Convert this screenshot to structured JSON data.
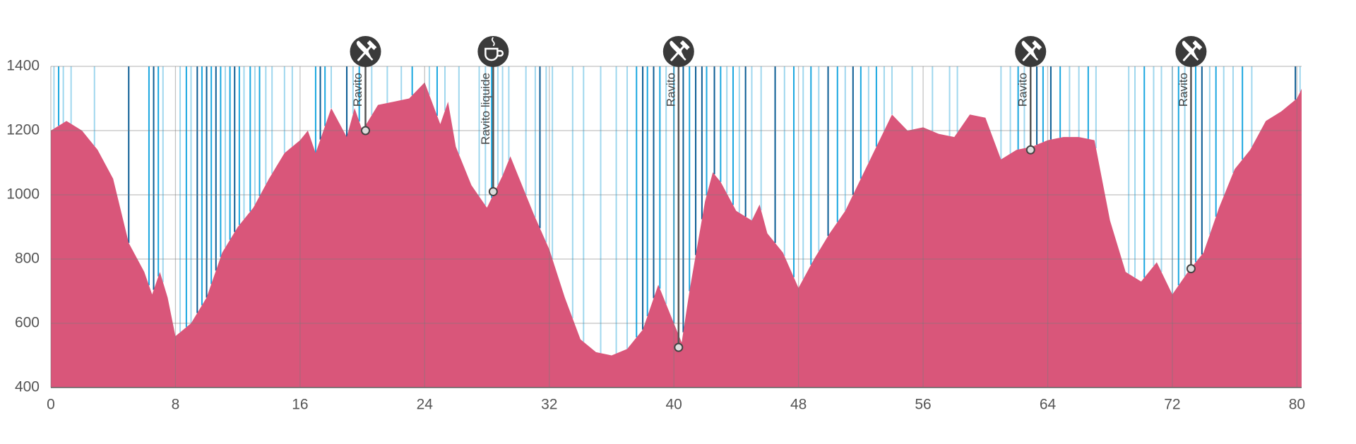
{
  "chart_data": {
    "type": "area",
    "color": "#d9567a",
    "xlim": [
      0,
      80.3
    ],
    "ylim": [
      400,
      1400
    ],
    "xticks": [
      0,
      8,
      16,
      24,
      32,
      40,
      48,
      56,
      64,
      72,
      80
    ],
    "yticks": [
      400,
      600,
      800,
      1000,
      1200,
      1400
    ],
    "grid": true,
    "x": [
      0,
      1,
      2,
      3,
      4,
      5,
      6,
      6.5,
      7,
      7.5,
      8,
      9,
      10,
      11,
      12,
      13,
      14,
      15,
      16,
      16.5,
      17,
      18,
      19,
      19.5,
      20,
      21,
      22,
      23,
      24,
      25,
      25.5,
      26,
      27,
      28,
      29,
      29.5,
      30,
      31,
      32,
      33,
      34,
      35,
      36,
      37,
      38,
      39,
      40,
      40.5,
      41,
      42,
      42.5,
      43,
      44,
      45,
      45.5,
      46,
      47,
      48,
      49,
      50,
      51,
      52,
      53,
      54,
      55,
      56,
      57,
      58,
      59,
      60,
      61,
      62,
      63,
      64,
      65,
      66,
      67,
      68,
      69,
      70,
      71,
      72,
      73,
      74,
      75,
      76,
      77,
      78,
      79,
      80,
      80.3
    ],
    "values": [
      1200,
      1230,
      1200,
      1140,
      1050,
      850,
      760,
      690,
      760,
      680,
      560,
      600,
      680,
      820,
      900,
      960,
      1050,
      1130,
      1170,
      1200,
      1130,
      1270,
      1180,
      1270,
      1200,
      1280,
      1290,
      1300,
      1350,
      1220,
      1290,
      1150,
      1030,
      960,
      1060,
      1120,
      1060,
      940,
      830,
      680,
      550,
      510,
      500,
      520,
      580,
      720,
      600,
      540,
      700,
      980,
      1070,
      1040,
      950,
      920,
      970,
      880,
      820,
      710,
      800,
      880,
      950,
      1050,
      1150,
      1250,
      1200,
      1210,
      1190,
      1180,
      1250,
      1240,
      1110,
      1140,
      1150,
      1170,
      1180,
      1180,
      1170,
      920,
      760,
      730,
      790,
      690,
      760,
      820,
      960,
      1080,
      1140,
      1230,
      1260,
      1300,
      1330
    ],
    "stripe_colors": [
      "#9fd7ee",
      "#1aa7e0",
      "#0a5c94"
    ],
    "stripes": {
      "x": [
        0.2,
        0.5,
        0.8,
        1.3,
        2.8,
        5.0,
        6.3,
        6.6,
        6.9,
        7.2,
        8.3,
        8.7,
        9.0,
        9.4,
        9.7,
        10.0,
        10.3,
        10.6,
        10.9,
        11.2,
        11.5,
        11.8,
        12.1,
        12.4,
        12.8,
        13.1,
        13.4,
        13.8,
        14.2,
        15.0,
        15.5,
        17.0,
        17.3,
        17.6,
        18.0,
        19.0,
        19.4,
        19.8,
        20.6,
        21.6,
        22.5,
        23.2,
        24.3,
        24.8,
        25.3,
        26.2,
        27.5,
        27.9,
        28.3,
        28.7,
        29.0,
        29.4,
        30.5,
        31.1,
        31.4,
        31.8,
        32.2,
        33.5,
        34.2,
        35.3,
        36.3,
        37.0,
        37.6,
        38.0,
        38.3,
        38.7,
        39.1,
        39.5,
        40.0,
        40.6,
        41.0,
        41.4,
        41.8,
        42.1,
        42.6,
        43.0,
        43.4,
        43.8,
        44.2,
        44.6,
        45.0,
        45.6,
        46.5,
        47.1,
        47.7,
        48.3,
        48.8,
        49.3,
        49.9,
        50.5,
        51.0,
        51.5,
        52.0,
        52.5,
        53.0,
        53.5,
        54.0,
        55.3,
        56.6,
        57.7,
        58.2,
        61.0,
        61.6,
        62.1,
        62.5,
        63.3,
        63.7,
        64.2,
        64.8,
        65.4,
        66.0,
        66.6,
        67.1,
        69.2,
        69.6,
        70.2,
        70.8,
        71.3,
        72.0,
        72.4,
        72.8,
        73.5,
        73.9,
        74.4,
        74.8,
        75.3,
        75.9,
        76.5,
        77.1,
        79.9,
        80.2
      ],
      "shade": [
        0,
        1,
        0,
        0,
        0,
        2,
        1,
        2,
        1,
        0,
        0,
        1,
        0,
        2,
        1,
        2,
        1,
        2,
        1,
        0,
        1,
        2,
        1,
        0,
        1,
        0,
        1,
        0,
        0,
        0,
        0,
        1,
        2,
        1,
        0,
        2,
        0,
        1,
        0,
        0,
        0,
        1,
        0,
        1,
        0,
        0,
        0,
        0,
        1,
        0,
        0,
        0,
        0,
        0,
        2,
        0,
        0,
        0,
        0,
        0,
        0,
        0,
        1,
        2,
        1,
        2,
        1,
        0,
        1,
        2,
        1,
        2,
        2,
        1,
        2,
        1,
        0,
        1,
        0,
        2,
        0,
        0,
        2,
        0,
        1,
        0,
        1,
        0,
        2,
        1,
        0,
        2,
        1,
        0,
        1,
        0,
        0,
        0,
        0,
        0,
        0,
        0,
        0,
        1,
        0,
        2,
        1,
        2,
        1,
        0,
        0,
        1,
        0,
        0,
        0,
        1,
        0,
        0,
        0,
        1,
        0,
        1,
        2,
        0,
        1,
        0,
        0,
        1,
        0,
        2,
        0
      ]
    },
    "markers": [
      {
        "name": "Ravito",
        "x": 20.2,
        "y": 1200,
        "icon": "food"
      },
      {
        "name": "Ravito liquide",
        "x": 28.4,
        "y": 1010,
        "icon": "drink"
      },
      {
        "name": "Ravito",
        "x": 40.3,
        "y": 525,
        "icon": "food"
      },
      {
        "name": "Ravito",
        "x": 62.9,
        "y": 1140,
        "icon": "food"
      },
      {
        "name": "Ravito",
        "x": 73.2,
        "y": 770,
        "icon": "food"
      }
    ]
  }
}
